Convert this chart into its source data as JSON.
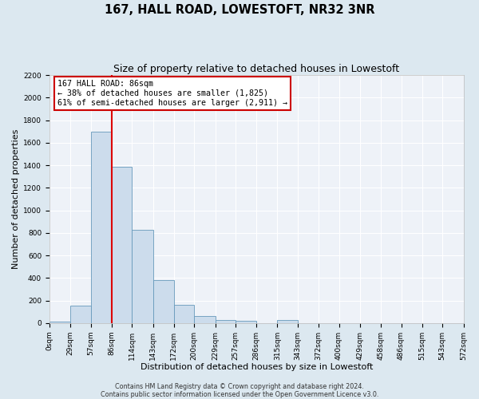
{
  "title": "167, HALL ROAD, LOWESTOFT, NR32 3NR",
  "subtitle": "Size of property relative to detached houses in Lowestoft",
  "xlabel": "Distribution of detached houses by size in Lowestoft",
  "ylabel": "Number of detached properties",
  "bin_edges": [
    0,
    29,
    57,
    86,
    114,
    143,
    172,
    200,
    229,
    257,
    286,
    315,
    343,
    372,
    400,
    429,
    458,
    486,
    515,
    543,
    572
  ],
  "bar_heights": [
    15,
    155,
    1700,
    1390,
    830,
    380,
    160,
    65,
    30,
    20,
    0,
    25,
    0,
    0,
    0,
    0,
    0,
    0,
    0,
    0
  ],
  "bar_color": "#ccdcec",
  "bar_edge_color": "#6699bb",
  "vline_x": 86,
  "vline_color": "#dd0000",
  "annotation_title": "167 HALL ROAD: 86sqm",
  "annotation_line1": "← 38% of detached houses are smaller (1,825)",
  "annotation_line2": "61% of semi-detached houses are larger (2,911) →",
  "annotation_box_color": "#cc0000",
  "annotation_bg_color": "#ffffff",
  "ylim": [
    0,
    2200
  ],
  "yticks": [
    0,
    200,
    400,
    600,
    800,
    1000,
    1200,
    1400,
    1600,
    1800,
    2000,
    2200
  ],
  "tick_labels": [
    "0sqm",
    "29sqm",
    "57sqm",
    "86sqm",
    "114sqm",
    "143sqm",
    "172sqm",
    "200sqm",
    "229sqm",
    "257sqm",
    "286sqm",
    "315sqm",
    "343sqm",
    "372sqm",
    "400sqm",
    "429sqm",
    "458sqm",
    "486sqm",
    "515sqm",
    "543sqm",
    "572sqm"
  ],
  "footer1": "Contains HM Land Registry data © Crown copyright and database right 2024.",
  "footer2": "Contains public sector information licensed under the Open Government Licence v3.0.",
  "background_color": "#dce8f0",
  "plot_bg_color": "#eef2f8",
  "grid_color": "#ffffff",
  "title_fontsize": 10.5,
  "subtitle_fontsize": 9,
  "axis_label_fontsize": 8,
  "tick_fontsize": 6.5,
  "footer_fontsize": 5.8,
  "ann_fontsize": 7.2
}
